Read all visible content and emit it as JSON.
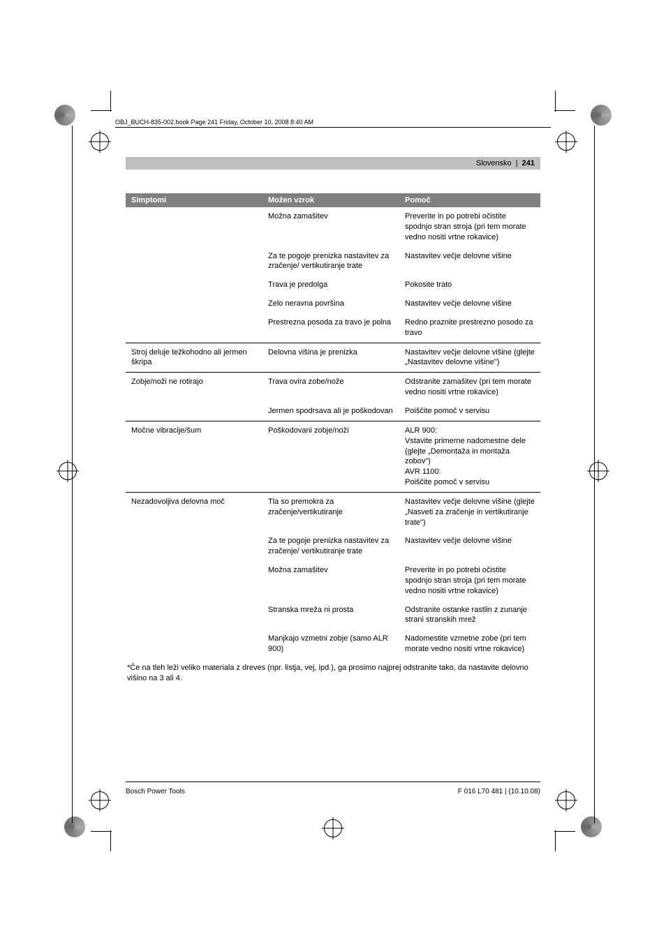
{
  "print_header": "OBJ_BUCH-835-002.book  Page 241  Friday, October 10, 2008  8:40 AM",
  "page_header": {
    "language": "Slovensko",
    "separator": "|",
    "page_number": "241"
  },
  "table": {
    "headers": [
      "Simptomi",
      "Možen vzrok",
      "Pomoč"
    ],
    "groups": [
      {
        "symptom": "",
        "rows": [
          {
            "cause": "Možna zamašitev",
            "remedy": "Preverite in po potrebi očistite spodnjo stran stroja (pri tem morate vedno nositi vrtne rokavice)"
          },
          {
            "cause": "Za te pogoje prenizka nastavitev za zračenje/ vertikutiranje trate",
            "remedy": "Nastavitev večje delovne višine"
          },
          {
            "cause": "Trava je predolga",
            "remedy": "Pokosite trato"
          },
          {
            "cause": "Zelo neravna površina",
            "remedy": "Nastavitev večje delovne višine"
          },
          {
            "cause": "Prestrezna posoda za travo je polna",
            "remedy": "Redno praznite prestrezno posodo za travo"
          }
        ]
      },
      {
        "symptom": "Stroj deluje težkohodno ali jermen škripa",
        "rows": [
          {
            "cause": "Delovna višina je prenizka",
            "remedy": "Nastavitev večje delovne višine (glejte „Nastavitev delovne višine\")"
          }
        ]
      },
      {
        "symptom": "Zobje/noži ne rotirajo",
        "rows": [
          {
            "cause": "Trava ovira zobe/nože",
            "remedy": "Odstranite zamašitev (pri tem morate vedno nositi vrtne rokavice)"
          },
          {
            "cause": "Jermen spodrsava ali je poškodovan",
            "remedy": "Poiščite pomoč v servisu"
          }
        ]
      },
      {
        "symptom": "Močne vibracije/šum",
        "rows": [
          {
            "cause": "Poškodovani zobje/noži",
            "remedy": "ALR 900:\nVstavite primerne nadomestne dele (glejte „Demontaža in montaža zobov\")\nAVR 1100:\nPoiščite pomoč v servisu"
          }
        ]
      },
      {
        "symptom": "Nezadovoljiva delovna moč",
        "rows": [
          {
            "cause": "Tla so premokra za zračenje/vertikutiranje",
            "remedy": "Nastavitev večje delovne višine (glejte „Nasveti za zračenje in vertikutiranje trate\")"
          },
          {
            "cause": "Za te pogoje prenizka nastavitev za zračenje/ vertikutiranje trate",
            "remedy": "Nastavitev večje delovne višine"
          },
          {
            "cause": "Možna zamašitev",
            "remedy": "Preverite in po potrebi očistite spodnjo stran stroja (pri tem morate vedno nositi vrtne rokavice)"
          },
          {
            "cause": "Stranska mreža ni prosta",
            "remedy": "Odstranite ostanke rastlin z zunanje strani stranskih mrež"
          },
          {
            "cause": "Manjkajo vzmetni zobje (samo ALR 900)",
            "remedy": "Nadomestite vzmetne zobe (pri tem morate vedno nositi vrtne rokavice)"
          }
        ]
      }
    ]
  },
  "footnote": "*Če na tleh leži veliko materiala z dreves (npr. listja, vej, ipd.), ga prosimo najprej odstranite tako, da nastavite delovno višino na 3 ali 4.",
  "footer": {
    "left": "Bosch Power Tools",
    "right": "F 016 L70 481 | (10.10.08)"
  }
}
